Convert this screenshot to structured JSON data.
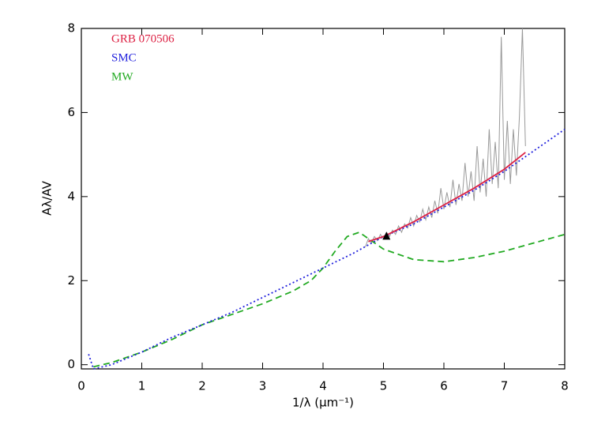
{
  "chart_data": {
    "type": "line",
    "xlabel": "1/λ (μm⁻¹)",
    "ylabel": "Aλ/AV",
    "xlim": [
      0,
      8
    ],
    "ylim": [
      -0.1,
      8
    ],
    "xticks": [
      0,
      1,
      2,
      3,
      4,
      5,
      6,
      7,
      8
    ],
    "yticks": [
      0,
      2,
      4,
      6,
      8
    ],
    "series": [
      {
        "color": "#999999",
        "style": "solid",
        "x": [
          4.7,
          4.75,
          4.8,
          4.85,
          4.9,
          4.95,
          5.0,
          5.05,
          5.1,
          5.15,
          5.2,
          5.25,
          5.3,
          5.35,
          5.4,
          5.45,
          5.5,
          5.55,
          5.6,
          5.65,
          5.7,
          5.75,
          5.8,
          5.85,
          5.9,
          5.95,
          6.0,
          6.05,
          6.1,
          6.15,
          6.2,
          6.25,
          6.3,
          6.35,
          6.4,
          6.45,
          6.5,
          6.55,
          6.6,
          6.65,
          6.7,
          6.75,
          6.8,
          6.85,
          6.9,
          6.95,
          7.0,
          7.05,
          7.1,
          7.15,
          7.2,
          7.25,
          7.3,
          7.35
        ],
        "values": [
          2.8,
          3.0,
          2.9,
          3.05,
          2.95,
          3.1,
          3.0,
          3.15,
          3.05,
          3.2,
          3.1,
          3.3,
          3.15,
          3.35,
          3.25,
          3.5,
          3.3,
          3.55,
          3.4,
          3.7,
          3.45,
          3.75,
          3.5,
          3.9,
          3.6,
          4.2,
          3.7,
          4.1,
          3.75,
          4.4,
          3.8,
          4.3,
          3.9,
          4.8,
          4.0,
          4.6,
          3.9,
          5.2,
          4.1,
          4.9,
          4.0,
          5.6,
          4.3,
          5.3,
          4.2,
          7.8,
          4.4,
          5.8,
          4.3,
          5.6,
          4.5,
          5.9,
          8.0,
          5.2
        ]
      },
      {
        "name": "MW",
        "color": "#22aa22",
        "style": "dashed",
        "x": [
          0.2,
          0.5,
          1,
          1.5,
          2,
          2.5,
          3,
          3.5,
          3.8,
          4.0,
          4.2,
          4.4,
          4.6,
          4.8,
          5.0,
          5.5,
          6,
          6.5,
          7,
          7.5,
          8
        ],
        "values": [
          -0.05,
          0.05,
          0.3,
          0.6,
          0.95,
          1.2,
          1.45,
          1.75,
          2.0,
          2.3,
          2.7,
          3.05,
          3.15,
          2.95,
          2.75,
          2.5,
          2.45,
          2.55,
          2.7,
          2.9,
          3.1
        ]
      },
      {
        "name": "SMC",
        "color": "#2222dd",
        "style": "dotted",
        "x": [
          0.12,
          0.2,
          0.5,
          1,
          1.5,
          2,
          2.5,
          3,
          3.5,
          4,
          4.5,
          5,
          5.5,
          6,
          6.5,
          7,
          7.5,
          8
        ],
        "values": [
          0.25,
          -0.1,
          0.0,
          0.3,
          0.65,
          0.95,
          1.25,
          1.6,
          1.95,
          2.3,
          2.65,
          3.05,
          3.35,
          3.75,
          4.15,
          4.6,
          5.1,
          5.6
        ]
      },
      {
        "name": "GRB 070506",
        "color": "#dd2244",
        "style": "solid",
        "x": [
          4.75,
          5,
          5.5,
          6,
          6.5,
          7,
          7.35
        ],
        "values": [
          2.93,
          3.05,
          3.4,
          3.8,
          4.2,
          4.65,
          5.05
        ]
      },
      {
        "color": "#000000",
        "style": "marker",
        "x": [
          5.05
        ],
        "values": [
          3.05
        ]
      }
    ]
  }
}
